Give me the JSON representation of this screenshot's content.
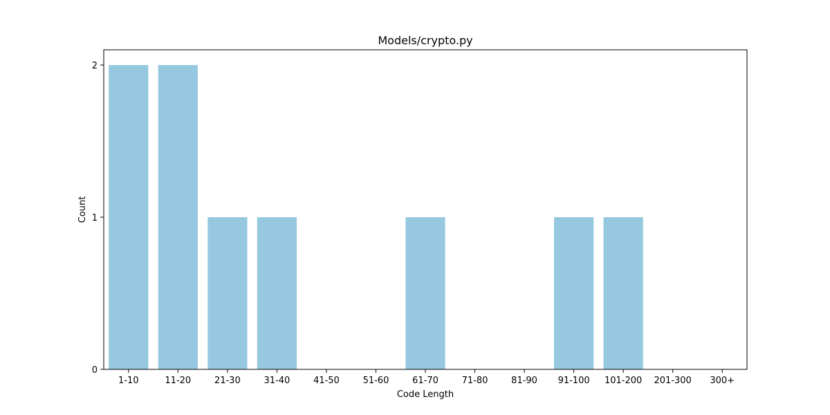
{
  "chart_data": {
    "type": "bar",
    "title": "Models/crypto.py",
    "xlabel": "Code Length",
    "ylabel": "Count",
    "categories": [
      "1-10",
      "11-20",
      "21-30",
      "31-40",
      "41-50",
      "51-60",
      "61-70",
      "71-80",
      "81-90",
      "91-100",
      "101-200",
      "201-300",
      "300+"
    ],
    "values": [
      2,
      2,
      1,
      1,
      0,
      0,
      1,
      0,
      0,
      1,
      1,
      0,
      0
    ],
    "ylim": [
      0,
      2.1
    ],
    "yticks": [
      0,
      1,
      2
    ],
    "grid": false,
    "legend": "none",
    "bar_color": "#96c9df"
  }
}
